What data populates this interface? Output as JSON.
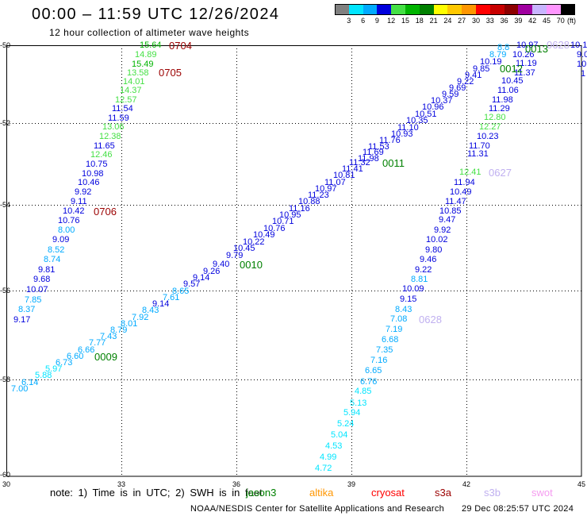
{
  "title": "00:00 – 11:59 UTC 12/26/2024",
  "subtitle": "12 hour collection of altimeter wave heights",
  "colorbar": {
    "ticks": [
      "3",
      "6",
      "9",
      "12",
      "15",
      "18",
      "21",
      "24",
      "27",
      "30",
      "33",
      "36",
      "39",
      "42",
      "45",
      "70"
    ],
    "unit": "(ft)",
    "colors": [
      "#808080",
      "#00e5ff",
      "#00aaff",
      "#0000dd",
      "#44e044",
      "#00b400",
      "#008000",
      "#ffff00",
      "#ffc800",
      "#ff9600",
      "#ff0000",
      "#c80000",
      "#8c0000",
      "#a000a0",
      "#c8b4ff",
      "#ff96ff",
      "#000000"
    ]
  },
  "axes": {
    "longitude": [
      "30",
      "33",
      "36",
      "39",
      "42",
      "45"
    ],
    "latitude": [
      "-50",
      "-52",
      "-54",
      "-56",
      "-58",
      "-60"
    ]
  },
  "swh_tracks": [
    [
      "15.64",
      "14.89",
      "15.49",
      "13.58",
      "14.01",
      "14.37",
      "12.57",
      "11.54",
      "11.59",
      "13.06",
      "12.38",
      "11.65",
      "12.46",
      "10.75",
      "10.98",
      "10.46",
      "9.92",
      "9.11",
      "10.42",
      "10.76",
      "8.00",
      "9.09",
      "8.52",
      "8.74",
      "9.81",
      "9.68",
      "10.07",
      "7.85",
      "8.37",
      "9.17"
    ],
    [
      "7.00",
      "6.14",
      "5.88",
      "5.97",
      "6.73",
      "6.60",
      "6.66",
      "7.77",
      "7.43",
      "8.79",
      "8.01",
      "7.92",
      "8.43",
      "9.14",
      "7.61",
      "8.65",
      "9.57",
      "9.14",
      "9.26",
      "9.40",
      "9.79",
      "10.45",
      "10.22",
      "10.49",
      "10.76",
      "10.71",
      "10.95",
      "11.16",
      "10.88",
      "11.23",
      "10.97",
      "11.07",
      "10.81",
      "11.41",
      "11.32",
      "11.98",
      "11.69",
      "11.53",
      "11.76",
      "10.93",
      "11.10",
      "10.35",
      "10.51",
      "10.96",
      "10.37",
      "9.59",
      "9.69",
      "9.22",
      "9.41",
      "9.85",
      "10.19",
      "8.79",
      "8.8"
    ],
    [
      "10.97",
      "10.26",
      "11.19",
      "11.37",
      "10.45",
      "11.06",
      "11.98",
      "11.29",
      "12.80",
      "12.27",
      "10.23",
      "11.70",
      "11.31",
      "12.41",
      "11.94",
      "10.49",
      "11.47",
      "10.85",
      "9.47",
      "9.92",
      "10.02",
      "9.80",
      "9.46",
      "9.22",
      "8.81",
      "10.09",
      "9.15",
      "8.43",
      "7.08",
      "7.19",
      "6.68",
      "7.35",
      "7.16",
      "6.65",
      "6.76",
      "4.85",
      "5.13",
      "5.94",
      "5.24",
      "5.04",
      "4.53",
      "4.99",
      "4.72"
    ]
  ],
  "edge_clipped_labels": {
    "values": [
      "10.1",
      "9.0",
      "10",
      "1"
    ],
    "color": "#0000dd"
  },
  "pass_labels": [
    {
      "text": "0704",
      "color": "#9b0000"
    },
    {
      "text": "0705",
      "color": "#9b0000"
    },
    {
      "text": "0706",
      "color": "#9b0000"
    },
    {
      "text": "0009",
      "color": "#008000"
    },
    {
      "text": "0010",
      "color": "#008000"
    },
    {
      "text": "0011",
      "color": "#008000"
    },
    {
      "text": "0012",
      "color": "#008000"
    },
    {
      "text": "0013",
      "color": "#008000"
    },
    {
      "text": "0627",
      "color": "#c0b0f0"
    },
    {
      "text": "0628",
      "color": "#c0b0f0"
    },
    {
      "text": "0628",
      "color": "#c0b0f0"
    }
  ],
  "note": "note: 1) Time is in UTC; 2) SWH is in feet",
  "satellites": [
    {
      "name": "jason3",
      "color": "#008000"
    },
    {
      "name": "altika",
      "color": "#ff9600"
    },
    {
      "name": "cryosat",
      "color": "#ff0000"
    },
    {
      "name": "s3a",
      "color": "#9b0000"
    },
    {
      "name": "s3b",
      "color": "#c0b0f0"
    },
    {
      "name": "swot",
      "color": "#f59cf0"
    }
  ],
  "footer": {
    "credit": "NOAA/NESDIS Center for Satellite Applications and Research",
    "timestamp": "29 Dec 08:25:57 UTC 2024"
  }
}
